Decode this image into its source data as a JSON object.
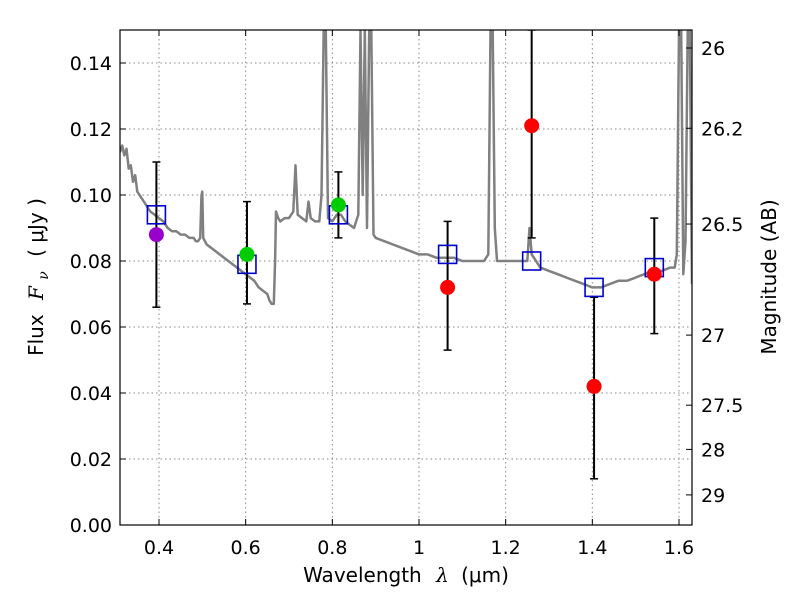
{
  "chart_data": {
    "type": "scatter",
    "xlabel": {
      "text": "Wavelength",
      "symbol": "λ",
      "unit": "(μm)"
    },
    "ylabel": {
      "text": "Flux",
      "symbol": "F",
      "subscript": "ν",
      "unit": "( μJy )"
    },
    "y2label": "Magnitude (AB)",
    "xlim": [
      0.31,
      1.63
    ],
    "ylim": [
      0.0,
      0.15
    ],
    "grid": true,
    "x_ticks": [
      0.4,
      0.6,
      0.8,
      1.0,
      1.2,
      1.4,
      1.6
    ],
    "x_tick_labels": [
      "0.4",
      "0.6",
      "0.8",
      "1",
      "1.2",
      "1.4",
      "1.6"
    ],
    "y_ticks": [
      0.0,
      0.02,
      0.04,
      0.06,
      0.08,
      0.1,
      0.12,
      0.14
    ],
    "y_tick_labels": [
      "0.00",
      "0.02",
      "0.04",
      "0.06",
      "0.08",
      "0.10",
      "0.12",
      "0.14"
    ],
    "magnitude_ticks": [
      26,
      26.2,
      26.5,
      27,
      27.5,
      28,
      29
    ],
    "magnitude_tick_labels": [
      "26",
      "26.2",
      "26.5",
      "27",
      "27.5",
      "28",
      "29"
    ],
    "colors": {
      "model": "#808080",
      "model_fit": "#0000cc",
      "purple": "#9900cc",
      "green": "#00cc00",
      "red": "#ff0000",
      "errorbar": "#000000",
      "grid": "#888888"
    },
    "observed": [
      {
        "x": 0.394,
        "flux": 0.088,
        "err_low": 0.066,
        "err_high": 0.11,
        "color": "purple"
      },
      {
        "x": 0.603,
        "flux": 0.082,
        "err_low": 0.067,
        "err_high": 0.098,
        "color": "green"
      },
      {
        "x": 0.814,
        "flux": 0.097,
        "err_low": 0.087,
        "err_high": 0.107,
        "color": "green"
      },
      {
        "x": 1.066,
        "flux": 0.072,
        "err_low": 0.053,
        "err_high": 0.092,
        "color": "red"
      },
      {
        "x": 1.26,
        "flux": 0.121,
        "err_low": 0.087,
        "err_high": 0.15,
        "color": "red"
      },
      {
        "x": 1.404,
        "flux": 0.042,
        "err_low": 0.014,
        "err_high": 0.069,
        "color": "red"
      },
      {
        "x": 1.543,
        "flux": 0.076,
        "err_low": 0.058,
        "err_high": 0.093,
        "color": "red"
      }
    ],
    "model_points": [
      {
        "x": 0.394,
        "flux": 0.094
      },
      {
        "x": 0.603,
        "flux": 0.079
      },
      {
        "x": 0.814,
        "flux": 0.094
      },
      {
        "x": 1.066,
        "flux": 0.082
      },
      {
        "x": 1.26,
        "flux": 0.08
      },
      {
        "x": 1.404,
        "flux": 0.072
      },
      {
        "x": 1.543,
        "flux": 0.078
      }
    ],
    "model_spectrum": [
      [
        0.31,
        0.113
      ],
      [
        0.315,
        0.115
      ],
      [
        0.32,
        0.112
      ],
      [
        0.325,
        0.114
      ],
      [
        0.33,
        0.108
      ],
      [
        0.335,
        0.109
      ],
      [
        0.34,
        0.104
      ],
      [
        0.345,
        0.106
      ],
      [
        0.35,
        0.101
      ],
      [
        0.36,
        0.099
      ],
      [
        0.37,
        0.097
      ],
      [
        0.38,
        0.095
      ],
      [
        0.39,
        0.094
      ],
      [
        0.4,
        0.093
      ],
      [
        0.41,
        0.092
      ],
      [
        0.42,
        0.09
      ],
      [
        0.43,
        0.089
      ],
      [
        0.44,
        0.089
      ],
      [
        0.45,
        0.088
      ],
      [
        0.46,
        0.088
      ],
      [
        0.47,
        0.087
      ],
      [
        0.48,
        0.087
      ],
      [
        0.485,
        0.086
      ],
      [
        0.49,
        0.086
      ],
      [
        0.495,
        0.087
      ],
      [
        0.498,
        0.1
      ],
      [
        0.5,
        0.101
      ],
      [
        0.502,
        0.087
      ],
      [
        0.51,
        0.085
      ],
      [
        0.52,
        0.084
      ],
      [
        0.54,
        0.082
      ],
      [
        0.56,
        0.08
      ],
      [
        0.58,
        0.078
      ],
      [
        0.6,
        0.076
      ],
      [
        0.62,
        0.074
      ],
      [
        0.63,
        0.072
      ],
      [
        0.64,
        0.071
      ],
      [
        0.65,
        0.07
      ],
      [
        0.655,
        0.068
      ],
      [
        0.66,
        0.067
      ],
      [
        0.665,
        0.067
      ],
      [
        0.668,
        0.08
      ],
      [
        0.67,
        0.095
      ],
      [
        0.675,
        0.093
      ],
      [
        0.68,
        0.092
      ],
      [
        0.69,
        0.093
      ],
      [
        0.7,
        0.093
      ],
      [
        0.71,
        0.095
      ],
      [
        0.715,
        0.109
      ],
      [
        0.72,
        0.094
      ],
      [
        0.73,
        0.093
      ],
      [
        0.74,
        0.092
      ],
      [
        0.745,
        0.098
      ],
      [
        0.75,
        0.093
      ],
      [
        0.76,
        0.092
      ],
      [
        0.77,
        0.092
      ],
      [
        0.775,
        0.1
      ],
      [
        0.78,
        0.15
      ],
      [
        0.785,
        0.15
      ],
      [
        0.79,
        0.093
      ],
      [
        0.8,
        0.092
      ],
      [
        0.81,
        0.094
      ],
      [
        0.82,
        0.094
      ],
      [
        0.83,
        0.092
      ],
      [
        0.84,
        0.091
      ],
      [
        0.85,
        0.09
      ],
      [
        0.86,
        0.094
      ],
      [
        0.865,
        0.15
      ],
      [
        0.87,
        0.1
      ],
      [
        0.875,
        0.15
      ],
      [
        0.88,
        0.09
      ],
      [
        0.885,
        0.15
      ],
      [
        0.89,
        0.15
      ],
      [
        0.895,
        0.088
      ],
      [
        0.9,
        0.087
      ],
      [
        0.92,
        0.086
      ],
      [
        0.94,
        0.085
      ],
      [
        0.96,
        0.084
      ],
      [
        0.98,
        0.083
      ],
      [
        1.0,
        0.082
      ],
      [
        1.02,
        0.082
      ],
      [
        1.04,
        0.081
      ],
      [
        1.06,
        0.081
      ],
      [
        1.08,
        0.081
      ],
      [
        1.1,
        0.08
      ],
      [
        1.12,
        0.08
      ],
      [
        1.14,
        0.08
      ],
      [
        1.15,
        0.08
      ],
      [
        1.16,
        0.082
      ],
      [
        1.165,
        0.15
      ],
      [
        1.17,
        0.15
      ],
      [
        1.175,
        0.09
      ],
      [
        1.18,
        0.08
      ],
      [
        1.2,
        0.08
      ],
      [
        1.22,
        0.08
      ],
      [
        1.24,
        0.08
      ],
      [
        1.25,
        0.08
      ],
      [
        1.255,
        0.09
      ],
      [
        1.26,
        0.082
      ],
      [
        1.28,
        0.078
      ],
      [
        1.3,
        0.077
      ],
      [
        1.32,
        0.076
      ],
      [
        1.34,
        0.075
      ],
      [
        1.36,
        0.074
      ],
      [
        1.38,
        0.073
      ],
      [
        1.4,
        0.072
      ],
      [
        1.42,
        0.072
      ],
      [
        1.44,
        0.073
      ],
      [
        1.46,
        0.074
      ],
      [
        1.48,
        0.074
      ],
      [
        1.5,
        0.075
      ],
      [
        1.52,
        0.076
      ],
      [
        1.54,
        0.077
      ],
      [
        1.56,
        0.077
      ],
      [
        1.58,
        0.078
      ],
      [
        1.59,
        0.078
      ],
      [
        1.595,
        0.082
      ],
      [
        1.6,
        0.15
      ],
      [
        1.605,
        0.15
      ],
      [
        1.61,
        0.076
      ],
      [
        1.615,
        0.086
      ],
      [
        1.62,
        0.15
      ],
      [
        1.625,
        0.15
      ],
      [
        1.63,
        0.073
      ]
    ]
  }
}
